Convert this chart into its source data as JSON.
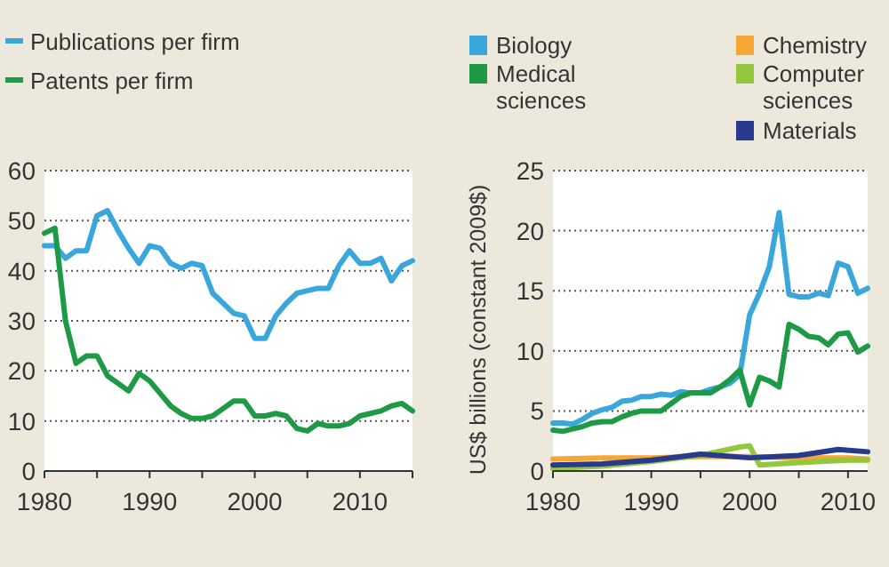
{
  "chart_data": [
    {
      "type": "line",
      "x": [
        1980,
        1981,
        1982,
        1983,
        1984,
        1985,
        1986,
        1987,
        1988,
        1989,
        1990,
        1991,
        1992,
        1993,
        1994,
        1995,
        1996,
        1997,
        1998,
        1999,
        2000,
        2001,
        2002,
        2003,
        2004,
        2005,
        2006,
        2007,
        2008,
        2009,
        2010,
        2011,
        2012,
        2013,
        2014,
        2015
      ],
      "series": [
        {
          "name": "Publications per firm",
          "color": "#3aa7dc",
          "values": [
            45,
            45,
            42.5,
            44,
            44,
            51,
            52,
            48,
            44.5,
            41.5,
            45,
            44.5,
            41.5,
            40.5,
            41.5,
            41,
            35.5,
            33.5,
            31.5,
            31,
            26.5,
            26.5,
            31,
            33.5,
            35.5,
            36,
            36.5,
            36.5,
            41,
            44,
            41.5,
            41.5,
            42.5,
            38,
            41,
            42
          ]
        },
        {
          "name": "Patents per firm",
          "color": "#1e9a47",
          "values": [
            47.5,
            48.5,
            30,
            21.5,
            23,
            23,
            19,
            17.5,
            16,
            19.5,
            18,
            15.5,
            13,
            11.5,
            10.5,
            10.5,
            11,
            12.5,
            14,
            14,
            11,
            11,
            11.5,
            11,
            8.5,
            8,
            9.5,
            9,
            9,
            9.5,
            11,
            11.5,
            12,
            13,
            13.5,
            12
          ]
        }
      ],
      "xlim": [
        1980,
        2015
      ],
      "xticks": [
        1980,
        1990,
        2000,
        2010
      ],
      "ylim": [
        0,
        60
      ],
      "yticks": [
        0,
        10,
        20,
        30,
        40,
        50,
        60
      ],
      "grid": "y",
      "legend": "top left"
    },
    {
      "type": "line",
      "ylabel": "US$ billions (constant 2009$)",
      "x": [
        1980,
        1981,
        1982,
        1983,
        1984,
        1985,
        1986,
        1987,
        1988,
        1989,
        1990,
        1991,
        1992,
        1993,
        1994,
        1995,
        1996,
        1997,
        1998,
        1999,
        2000,
        2001,
        2002,
        2003,
        2004,
        2005,
        2006,
        2007,
        2008,
        2009,
        2010,
        2011,
        2012
      ],
      "series": [
        {
          "name": "Biology",
          "color": "#3aa7dc",
          "values": [
            4,
            4,
            3.9,
            4.3,
            4.8,
            5.1,
            5.3,
            5.8,
            5.9,
            6.2,
            6.2,
            6.4,
            6.3,
            6.6,
            6.5,
            6.5,
            6.8,
            7,
            7.3,
            8,
            13,
            14.8,
            17,
            21.5,
            14.7,
            14.5,
            14.5,
            14.8,
            14.6,
            17.3,
            17,
            14.8,
            15.2
          ]
        },
        {
          "name": "Medical sciences",
          "color": "#1e9a47",
          "values": [
            3.4,
            3.3,
            3.5,
            3.7,
            4,
            4.1,
            4.1,
            4.5,
            4.8,
            5,
            5,
            5,
            5.6,
            6.2,
            6.5,
            6.5,
            6.5,
            7,
            7.6,
            8.4,
            5.5,
            7.8,
            7.5,
            7,
            12.2,
            11.8,
            11.2,
            11.1,
            10.5,
            11.4,
            11.5,
            9.9,
            10.4
          ]
        },
        {
          "name": "Chemistry",
          "color": "#f5a733",
          "x": [
            1980,
            1985,
            1990,
            1995,
            2000,
            2005,
            2010,
            2012
          ],
          "values": [
            1,
            1.1,
            1.1,
            1.2,
            1.2,
            1.1,
            1.1,
            1
          ]
        },
        {
          "name": "Computer sciences",
          "color": "#93c83e",
          "x": [
            1980,
            1985,
            1990,
            1995,
            1999,
            2000,
            2001,
            2005,
            2010,
            2012
          ],
          "values": [
            0.2,
            0.4,
            0.8,
            1.3,
            2,
            2.1,
            0.5,
            0.7,
            0.9,
            0.9
          ]
        },
        {
          "name": "Materials",
          "color": "#283a8e",
          "x": [
            1980,
            1985,
            1990,
            1995,
            2000,
            2005,
            2009,
            2012
          ],
          "values": [
            0.5,
            0.6,
            0.9,
            1.4,
            1.1,
            1.3,
            1.8,
            1.6
          ]
        }
      ],
      "xlim": [
        1980,
        2012
      ],
      "xticks": [
        1980,
        1990,
        2000,
        2010
      ],
      "ylim": [
        0,
        25
      ],
      "yticks": [
        0,
        5,
        10,
        15,
        20,
        25
      ],
      "grid": "y",
      "legend": "top"
    }
  ]
}
